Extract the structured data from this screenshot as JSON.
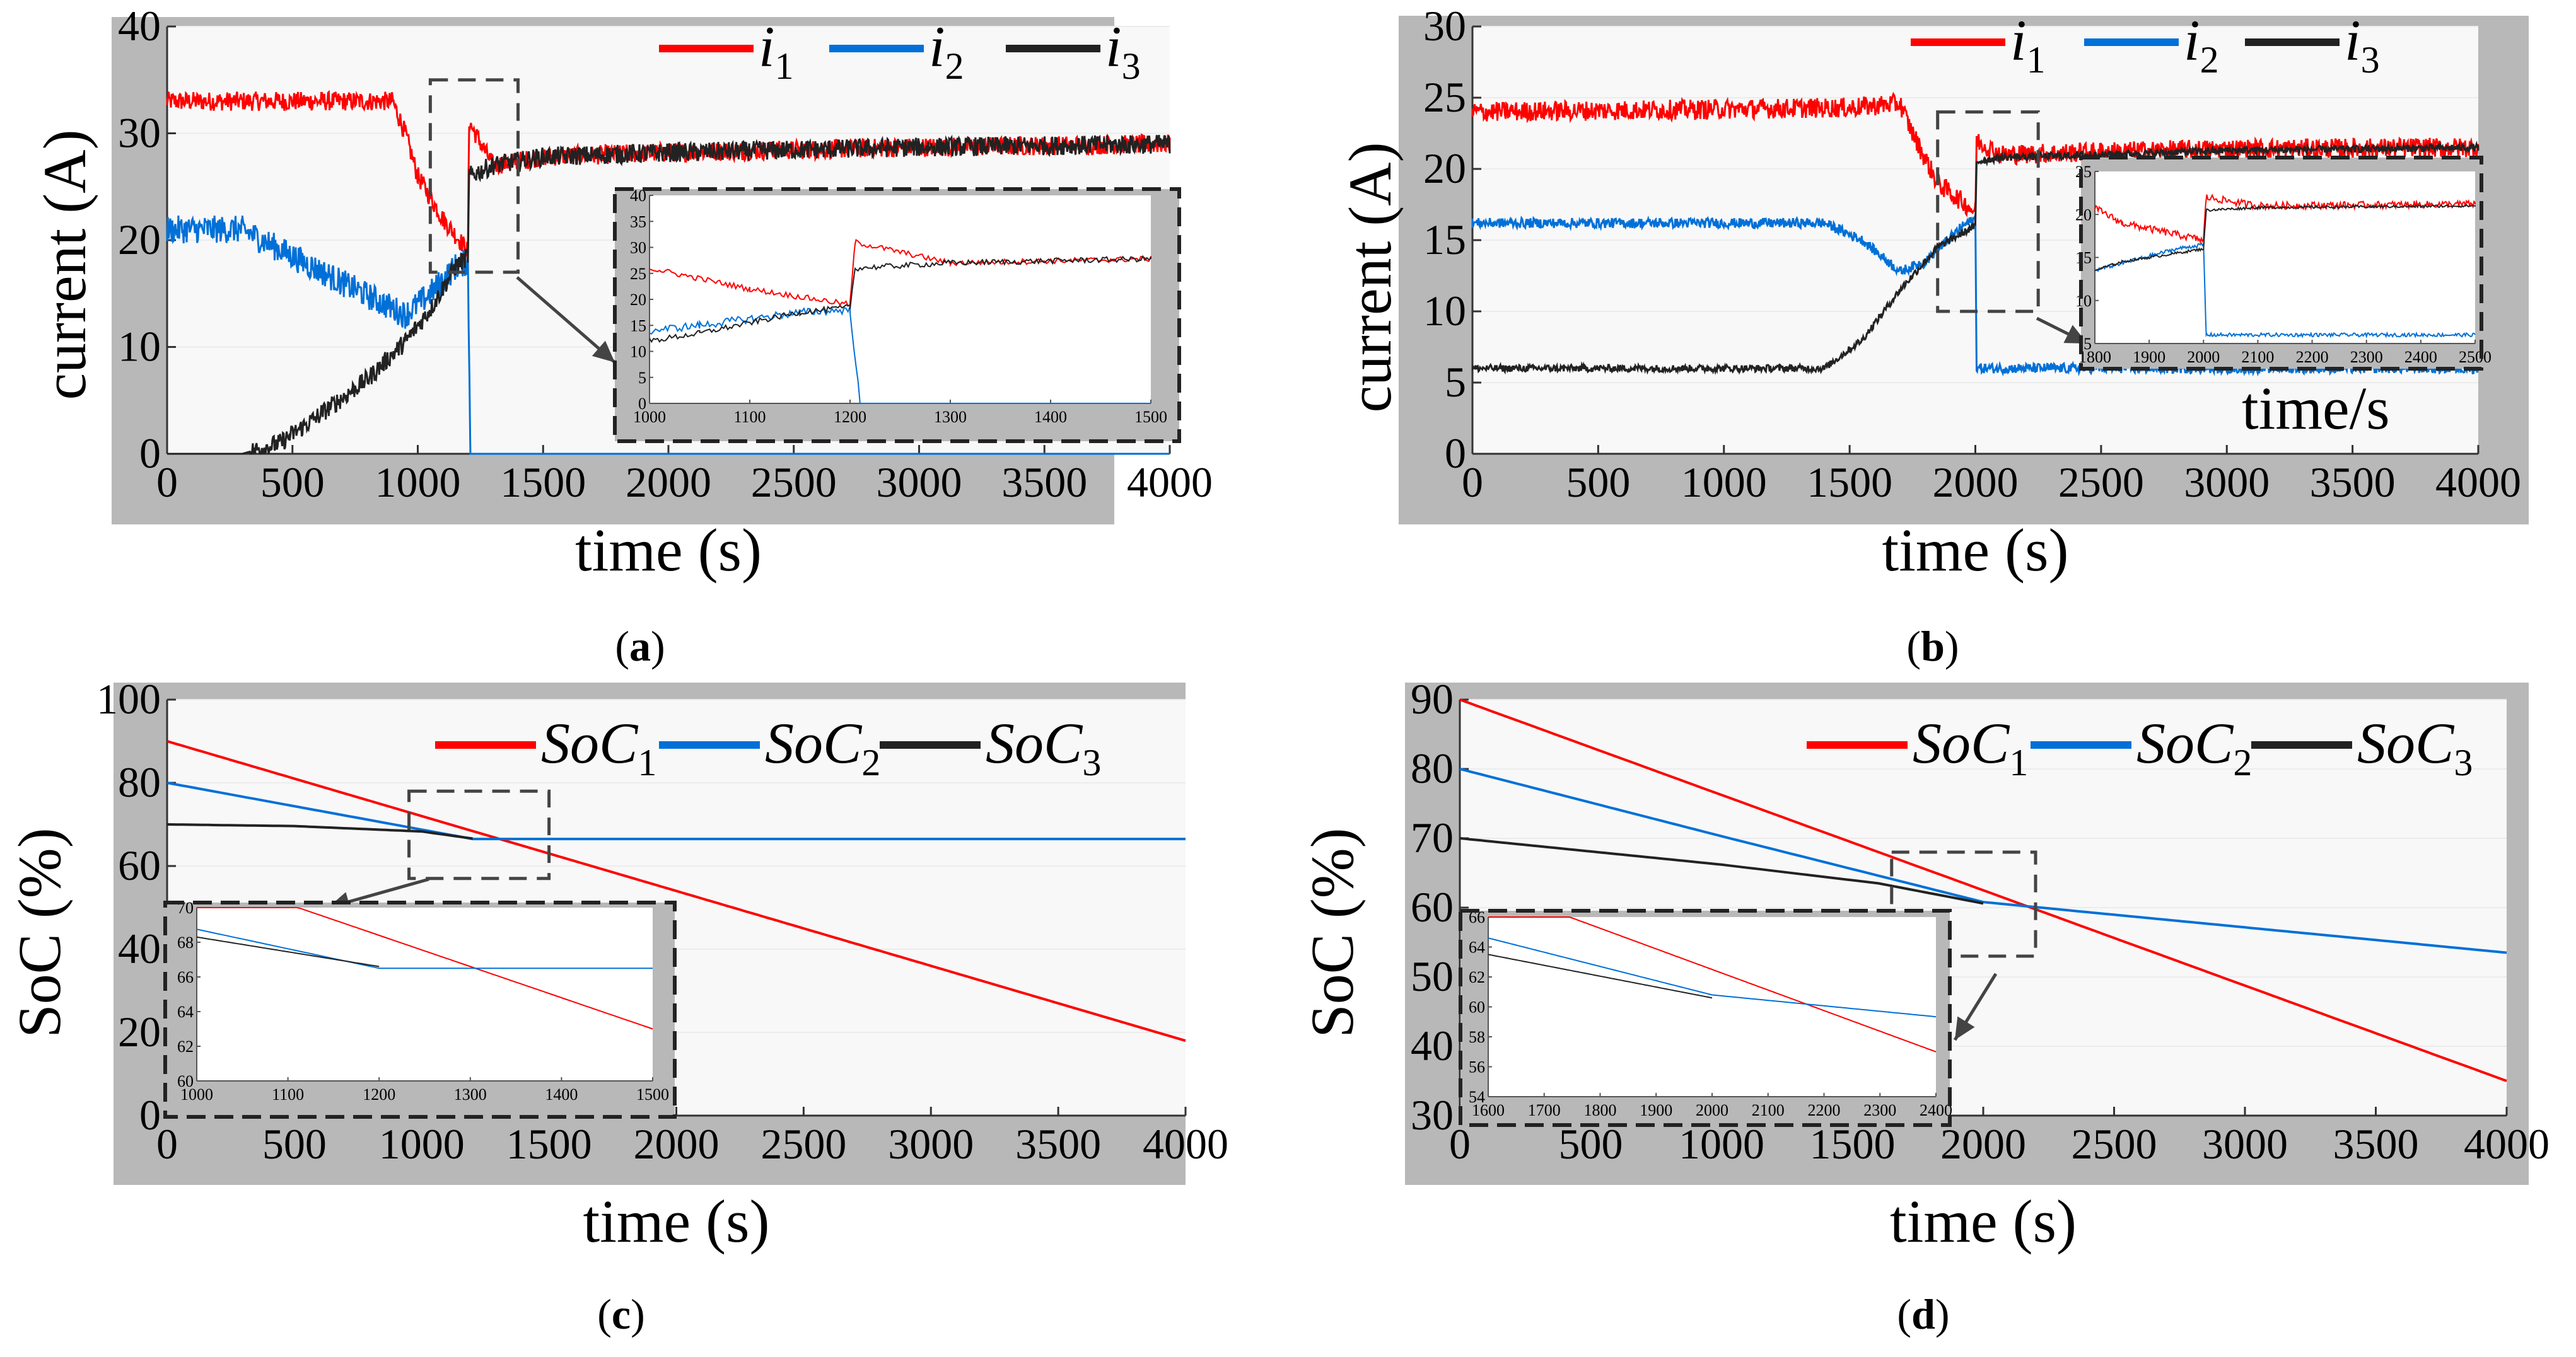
{
  "colors": {
    "series1": "#ff0000",
    "series2": "#0070d8",
    "series3": "#222222",
    "frame": "#b8b8b8",
    "plot_bg": "#f8f8f8"
  },
  "chart_data": [
    {
      "id": "a",
      "type": "line",
      "caption": {
        "open": "(",
        "letter": "a",
        "close": ")"
      },
      "xlabel": "time (s)",
      "ylabel": "current (A)",
      "xlim": [
        0,
        4000
      ],
      "ylim": [
        0,
        40
      ],
      "xticks": [
        "0",
        "500",
        "1000",
        "1500",
        "2000",
        "2500",
        "3000",
        "3500",
        "4000"
      ],
      "yticks": [
        "0",
        "10",
        "20",
        "30",
        "40"
      ],
      "legend": [
        {
          "base": "i",
          "sub": "1"
        },
        {
          "base": "i",
          "sub": "2"
        },
        {
          "base": "i",
          "sub": "3"
        }
      ],
      "extra_label": "",
      "series": [
        {
          "name": "i1",
          "noise": 0.9,
          "points": [
            [
              0,
              33
            ],
            [
              900,
              33
            ],
            [
              950,
              30
            ],
            [
              1000,
              26
            ],
            [
              1100,
              22
            ],
            [
              1200,
              19
            ],
            [
              1205,
              31
            ],
            [
              1300,
              27
            ],
            [
              1500,
              27.8
            ],
            [
              2000,
              28.2
            ],
            [
              3000,
              28.7
            ],
            [
              4000,
              29
            ]
          ]
        },
        {
          "name": "i2",
          "noise": 1.3,
          "points": [
            [
              0,
              21
            ],
            [
              300,
              21
            ],
            [
              500,
              18.5
            ],
            [
              700,
              16
            ],
            [
              950,
              13
            ],
            [
              1050,
              15
            ],
            [
              1150,
              17.5
            ],
            [
              1200,
              18
            ],
            [
              1210,
              0
            ],
            [
              4000,
              0
            ]
          ]
        },
        {
          "name": "i3",
          "noise": 0.9,
          "points": [
            [
              0,
              0
            ],
            [
              300,
              0
            ],
            [
              450,
              1
            ],
            [
              600,
              3.5
            ],
            [
              800,
              7
            ],
            [
              950,
              10.5
            ],
            [
              1050,
              13.5
            ],
            [
              1150,
              17.5
            ],
            [
              1200,
              18.5
            ],
            [
              1205,
              26
            ],
            [
              1300,
              27
            ],
            [
              1500,
              27.8
            ],
            [
              2000,
              28.2
            ],
            [
              3000,
              28.7
            ],
            [
              4000,
              29
            ]
          ]
        }
      ],
      "zoom": {
        "xlim": [
          1000,
          1500
        ],
        "ylim": [
          0,
          40
        ],
        "xticks": [
          "1000",
          "1100",
          "1200",
          "1300",
          "1400",
          "1500"
        ],
        "yticks": [
          "0",
          "5",
          "10",
          "15",
          "20",
          "25",
          "30",
          "35",
          "40"
        ],
        "box_x": [
          1050,
          1400
        ],
        "box_y": [
          17,
          35
        ]
      }
    },
    {
      "id": "b",
      "type": "line",
      "caption": {
        "open": "(",
        "letter": "b",
        "close": ")"
      },
      "xlabel": "time (s)",
      "ylabel": "current (A)",
      "xlim": [
        0,
        4000
      ],
      "ylim": [
        0,
        30
      ],
      "xticks": [
        "0",
        "500",
        "1000",
        "1500",
        "2000",
        "2500",
        "3000",
        "3500",
        "4000"
      ],
      "yticks": [
        "0",
        "5",
        "10",
        "15",
        "20",
        "25",
        "30"
      ],
      "legend": [
        {
          "base": "i",
          "sub": "1"
        },
        {
          "base": "i",
          "sub": "2"
        },
        {
          "base": "i",
          "sub": "3"
        }
      ],
      "extra_label": "time/s",
      "series": [
        {
          "name": "i1",
          "noise": 0.7,
          "points": [
            [
              0,
              24
            ],
            [
              1500,
              24.3
            ],
            [
              1700,
              24.6
            ],
            [
              1750,
              22.5
            ],
            [
              1850,
              19
            ],
            [
              2000,
              17
            ],
            [
              2005,
              22
            ],
            [
              2100,
              21
            ],
            [
              2500,
              21.2
            ],
            [
              3000,
              21.4
            ],
            [
              4000,
              21.5
            ]
          ]
        },
        {
          "name": "i2",
          "noise": 0.35,
          "points": [
            [
              0,
              16.2
            ],
            [
              1400,
              16.2
            ],
            [
              1550,
              15
            ],
            [
              1700,
              12.8
            ],
            [
              1800,
              13.5
            ],
            [
              1950,
              16
            ],
            [
              2000,
              16.5
            ],
            [
              2005,
              6
            ],
            [
              4000,
              6
            ]
          ]
        },
        {
          "name": "i3",
          "noise": 0.25,
          "points": [
            [
              0,
              6
            ],
            [
              1400,
              6
            ],
            [
              1550,
              8
            ],
            [
              1700,
              11.5
            ],
            [
              1850,
              14.5
            ],
            [
              2000,
              16
            ],
            [
              2005,
              20.5
            ],
            [
              2100,
              20.8
            ],
            [
              2500,
              21
            ],
            [
              3000,
              21.3
            ],
            [
              4000,
              21.5
            ]
          ]
        }
      ],
      "zoom": {
        "xlim": [
          1800,
          2500
        ],
        "ylim": [
          5,
          25
        ],
        "xticks": [
          "1800",
          "1900",
          "2000",
          "2100",
          "2200",
          "2300",
          "2400",
          "2500"
        ],
        "yticks": [
          "5",
          "10",
          "15",
          "20",
          "25"
        ],
        "box_x": [
          1850,
          2250
        ],
        "box_y": [
          10,
          24
        ]
      }
    },
    {
      "id": "c",
      "type": "line",
      "caption": {
        "open": "(",
        "letter": "c",
        "close": ")"
      },
      "xlabel": "time (s)",
      "ylabel": "SoC (%)",
      "xlim": [
        0,
        4000
      ],
      "ylim": [
        0,
        100
      ],
      "xticks": [
        "0",
        "500",
        "1000",
        "1500",
        "2000",
        "2500",
        "3000",
        "3500",
        "4000"
      ],
      "yticks": [
        "0",
        "20",
        "40",
        "60",
        "80",
        "100"
      ],
      "legend": [
        {
          "base": "SoC",
          "sub": "1"
        },
        {
          "base": "SoC",
          "sub": "2"
        },
        {
          "base": "SoC",
          "sub": "3"
        }
      ],
      "extra_label": "",
      "series": [
        {
          "name": "SoC1",
          "noise": 0,
          "points": [
            [
              0,
              90
            ],
            [
              4000,
              18
            ]
          ]
        },
        {
          "name": "SoC2",
          "noise": 0,
          "points": [
            [
              0,
              80
            ],
            [
              1200,
              66.5
            ],
            [
              4000,
              66.5
            ]
          ]
        },
        {
          "name": "SoC3",
          "noise": 0,
          "points": [
            [
              0,
              70
            ],
            [
              500,
              69.6
            ],
            [
              1000,
              68.3
            ],
            [
              1200,
              66.6
            ]
          ]
        }
      ],
      "zoom": {
        "xlim": [
          1000,
          1500
        ],
        "ylim": [
          60,
          70
        ],
        "xticks": [
          "1000",
          "1100",
          "1200",
          "1300",
          "1400",
          "1500"
        ],
        "yticks": [
          "60",
          "62",
          "64",
          "66",
          "68",
          "70"
        ],
        "box_x": [
          950,
          1500
        ],
        "box_y": [
          57,
          78
        ]
      }
    },
    {
      "id": "d",
      "type": "line",
      "caption": {
        "open": "(",
        "letter": "d",
        "close": ")"
      },
      "xlabel": "time (s)",
      "ylabel": "SoC (%)",
      "xlim": [
        0,
        4000
      ],
      "ylim": [
        30,
        90
      ],
      "xticks": [
        "0",
        "500",
        "1000",
        "1500",
        "2000",
        "2500",
        "3000",
        "3500",
        "4000"
      ],
      "yticks": [
        "30",
        "40",
        "50",
        "60",
        "70",
        "80",
        "90"
      ],
      "legend": [
        {
          "base": "SoC",
          "sub": "1"
        },
        {
          "base": "SoC",
          "sub": "2"
        },
        {
          "base": "SoC",
          "sub": "3"
        }
      ],
      "extra_label": "",
      "series": [
        {
          "name": "SoC1",
          "noise": 0,
          "points": [
            [
              0,
              90
            ],
            [
              4000,
              35
            ]
          ]
        },
        {
          "name": "SoC2",
          "noise": 0,
          "points": [
            [
              0,
              80
            ],
            [
              1000,
              70.3
            ],
            [
              2000,
              60.8
            ],
            [
              4000,
              53.5
            ]
          ]
        },
        {
          "name": "SoC3",
          "noise": 0,
          "points": [
            [
              0,
              70
            ],
            [
              1000,
              66.2
            ],
            [
              1600,
              63.5
            ],
            [
              2000,
              60.6
            ]
          ]
        }
      ],
      "zoom": {
        "xlim": [
          1600,
          2400
        ],
        "ylim": [
          54,
          66
        ],
        "xticks": [
          "1600",
          "1700",
          "1800",
          "1900",
          "2000",
          "2100",
          "2200",
          "2300",
          "2400"
        ],
        "yticks": [
          "54",
          "56",
          "58",
          "60",
          "62",
          "64",
          "66"
        ],
        "box_x": [
          1650,
          2200
        ],
        "box_y": [
          53,
          68
        ]
      }
    }
  ]
}
